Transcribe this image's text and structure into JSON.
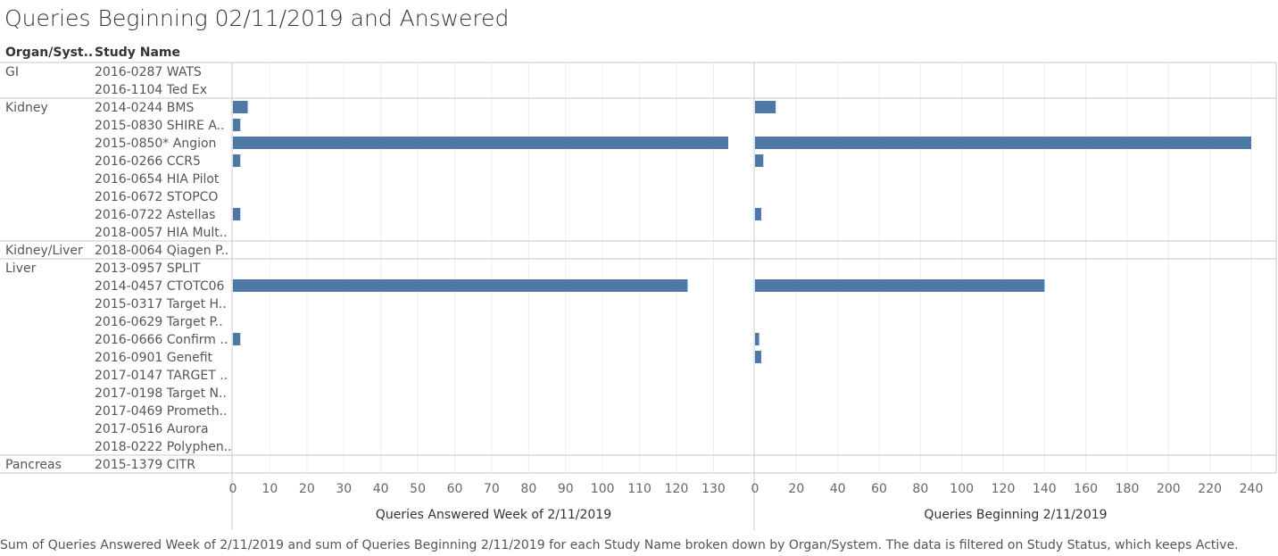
{
  "header": {
    "title": "Queries Beginning 02/11/2019 and Answered",
    "col_organ": "Organ/Syst..",
    "col_study": "Study Name"
  },
  "caption": "Sum of Queries Answered Week of 2/11/2019 and sum of Queries Beginning 2/11/2019 for each Study Name broken down by Organ/System. The data is filtered on Study Status, which keeps Active.",
  "colors": {
    "bar": "#4e79a7",
    "grid": "#eeeeee",
    "border": "#c8c8c8"
  },
  "chart_data": {
    "type": "bar",
    "orientation": "horizontal",
    "groups": [
      {
        "name": "GI",
        "rows": [
          "2016-0287 WATS",
          "2016-1104 Ted Ex"
        ]
      },
      {
        "name": "Kidney",
        "rows": [
          "2014-0244 BMS",
          "2015-0830 SHIRE A..",
          "2015-0850* Angion",
          "2016-0266 CCR5",
          "2016-0654 HIA Pilot",
          "2016-0672 STOPCO",
          "2016-0722 Astellas",
          "2018-0057 HIA Mult.."
        ]
      },
      {
        "name": "Kidney/Liver",
        "rows": [
          "2018-0064 Qiagen P.."
        ]
      },
      {
        "name": "Liver",
        "rows": [
          "2013-0957 SPLIT",
          "2014-0457 CTOTC06",
          "2015-0317 Target H..",
          "2016-0629 Target P..",
          "2016-0666 Confirm ..",
          "2016-0901 Genefit",
          "2017-0147 TARGET ..",
          "2017-0198 Target N..",
          "2017-0469 Prometh..",
          "2017-0516 Aurora",
          "2018-0222 Polyphen.."
        ]
      },
      {
        "name": "Pancreas",
        "rows": [
          "2015-1379 CITR"
        ]
      }
    ],
    "series": [
      {
        "name": "Queries Answered Week of 2/11/2019",
        "xlim": [
          0,
          140
        ],
        "ticks": [
          0,
          10,
          20,
          30,
          40,
          50,
          60,
          70,
          80,
          90,
          100,
          110,
          120,
          130
        ],
        "values": [
          null,
          null,
          4,
          2,
          134,
          2,
          null,
          null,
          2,
          null,
          null,
          null,
          123,
          null,
          null,
          2,
          null,
          null,
          null,
          null,
          null,
          null,
          null
        ]
      },
      {
        "name": "Queries Beginning 2/11/2019",
        "xlim": [
          0,
          250
        ],
        "ticks": [
          0,
          20,
          40,
          60,
          80,
          100,
          120,
          140,
          160,
          180,
          200,
          220,
          240
        ],
        "values": [
          null,
          null,
          10,
          null,
          240,
          4,
          null,
          null,
          3,
          null,
          null,
          null,
          140,
          null,
          null,
          2,
          3,
          null,
          null,
          null,
          null,
          null,
          null
        ]
      }
    ]
  }
}
